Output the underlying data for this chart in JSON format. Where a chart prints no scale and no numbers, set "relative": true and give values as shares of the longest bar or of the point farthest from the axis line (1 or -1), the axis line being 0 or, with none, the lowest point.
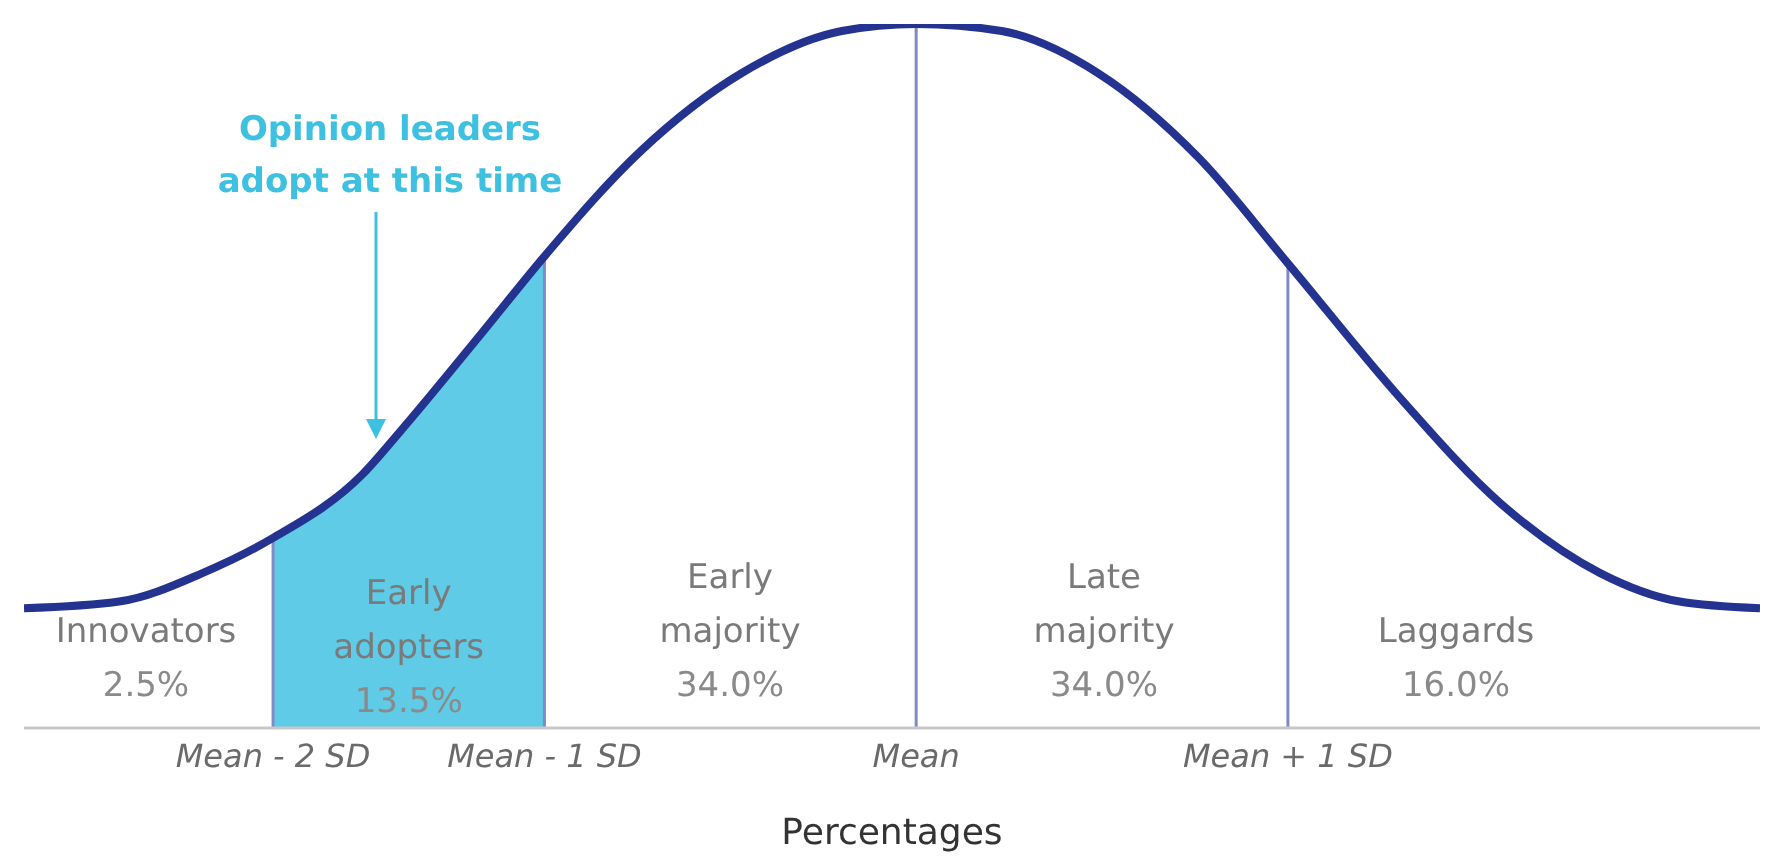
{
  "chart_data": {
    "type": "line",
    "relative": true,
    "xlabel": "Percentages",
    "x": [
      -2.4,
      -2.14,
      -1.92,
      -1.73,
      -1.49,
      -1.39,
      -1.17,
      -1,
      -0.74,
      -0.47,
      -0.2,
      0,
      0.23,
      0.49,
      0.76,
      1,
      1.3,
      1.57,
      1.84,
      2.05,
      2.27
    ],
    "series": [
      {
        "color": "#24338f",
        "values": [
          0.17,
          0.18,
          0.22,
          0.27,
          0.36,
          0.42,
          0.56,
          0.67,
          0.82,
          0.93,
          0.99,
          1,
          0.99,
          0.93,
          0.81,
          0.66,
          0.47,
          0.32,
          0.22,
          0.18,
          0.17
        ]
      }
    ],
    "xlim": [
      -2.4,
      2.27
    ],
    "xticks": [
      {
        "value": -1.73,
        "label": "Mean - 2 SD"
      },
      {
        "value": -1,
        "label": "Mean - 1 SD"
      },
      {
        "value": 0,
        "label": "Mean"
      },
      {
        "value": 1,
        "label": "Mean + 1 SD"
      }
    ],
    "ref_lines": [
      {
        "axis": "x",
        "value": -1.73,
        "color": "#7f8bc9"
      },
      {
        "axis": "x",
        "value": -1,
        "color": "#7f8bc9"
      },
      {
        "axis": "x",
        "value": 0,
        "color": "#7f8bc9"
      },
      {
        "axis": "x",
        "value": 1,
        "color": "#7f8bc9"
      }
    ],
    "bands": [
      {
        "axis": "x",
        "from": -1.73,
        "to": -1,
        "label": "Early\nadopters\n13.5%",
        "color": "#5fcbe6"
      }
    ],
    "annotations": [
      "Opinion leaders\nadopt at this time",
      "Innovators\n2.5%",
      "Early\nmajority\n34.0%",
      "Late\nmajority\n34.0%",
      "Laggards\n16.0%"
    ],
    "grid": false,
    "legend": false,
    "marker": "none",
    "line_style": "solid"
  }
}
